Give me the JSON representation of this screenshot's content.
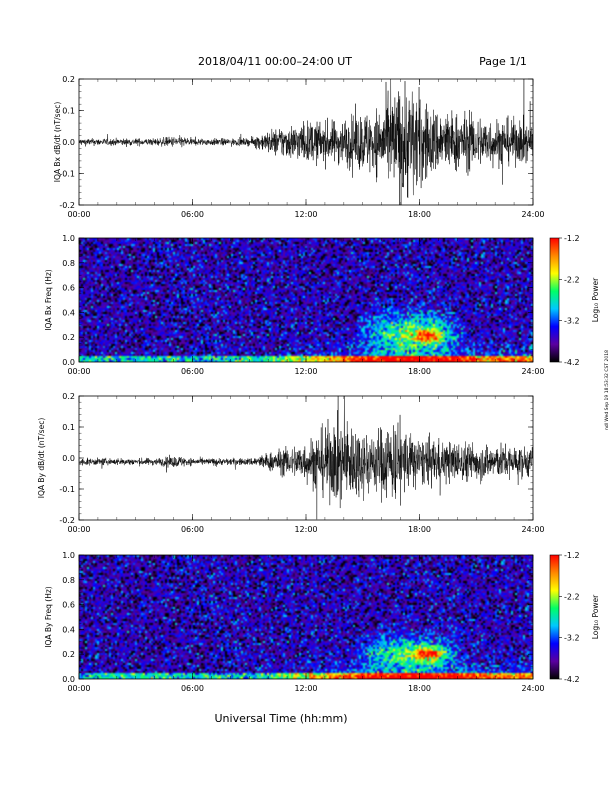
{
  "header": {
    "title": "2018/04/11   00:00–24:00 UT",
    "page": "Page 1/1"
  },
  "x_axis": {
    "label": "Universal Time (hh:mm)",
    "ticks": [
      "00:00",
      "06:00",
      "12:00",
      "18:00",
      "24:00"
    ],
    "range_hours": [
      0,
      24
    ]
  },
  "side_stamp": "ndl Wed Sep 19 18:53:32 CST 2018",
  "colorbar": {
    "label": "Log₁₀ Power",
    "ticks": [
      "-1.2",
      "-2.2",
      "-3.2",
      "-4.2"
    ],
    "range": [
      -4.2,
      -1.2
    ],
    "colors": [
      "#000000",
      "#5a00a0",
      "#0000ff",
      "#00c8ff",
      "#00ff66",
      "#ffff00",
      "#ff8800",
      "#ff0000"
    ]
  },
  "chart_data": [
    {
      "type": "line",
      "name": "bx-waveform",
      "ylabel": "IQA Bx dB/dt (nT/sec)",
      "ylim": [
        -0.2,
        0.2
      ],
      "yticks": [
        "0.2",
        "0.1",
        "0.0",
        "-0.1",
        "-0.2"
      ],
      "envelope": {
        "hours": [
          0,
          4,
          5.3,
          6,
          9,
          10.5,
          12,
          13.5,
          15,
          16,
          17,
          17.6,
          18.5,
          20,
          22,
          24
        ],
        "amplitude": [
          0.012,
          0.012,
          0.02,
          0.012,
          0.012,
          0.05,
          0.07,
          0.07,
          0.1,
          0.12,
          0.2,
          0.2,
          0.12,
          0.1,
          0.08,
          0.07
        ]
      }
    },
    {
      "type": "heatmap",
      "name": "bx-spectrogram",
      "ylabel": "IQA Bx Freq (Hz)",
      "ylim": [
        0.0,
        1.0
      ],
      "yticks": [
        "1.0",
        "0.8",
        "0.6",
        "0.4",
        "0.2",
        "0.0"
      ],
      "zlim": [
        -4.2,
        -1.2
      ],
      "features": [
        {
          "hour_range": [
            14.5,
            20.5
          ],
          "freq_range": [
            0.1,
            0.35
          ],
          "peak_hour": 18.5,
          "peak_freq": 0.2,
          "peak_power": -1.5
        }
      ]
    },
    {
      "type": "line",
      "name": "by-waveform",
      "ylabel": "IQA By dB/dt (nT/sec)",
      "ylim": [
        -0.2,
        0.2
      ],
      "yticks": [
        "0.2",
        "0.1",
        "0.0",
        "-0.1",
        "-0.2"
      ],
      "envelope": {
        "hours": [
          0,
          4,
          5.3,
          6,
          9,
          10.5,
          12,
          13,
          14,
          15.5,
          16.5,
          17,
          18,
          20,
          22,
          24
        ],
        "amplitude": [
          0.012,
          0.012,
          0.02,
          0.012,
          0.012,
          0.04,
          0.07,
          0.12,
          0.15,
          0.1,
          0.15,
          0.12,
          0.08,
          0.07,
          0.06,
          0.05
        ]
      }
    },
    {
      "type": "heatmap",
      "name": "by-spectrogram",
      "ylabel": "IQA By Freq (Hz)",
      "ylim": [
        0.0,
        1.0
      ],
      "yticks": [
        "1.0",
        "0.8",
        "0.6",
        "0.4",
        "0.2",
        "0.0"
      ],
      "zlim": [
        -4.2,
        -1.2
      ],
      "features": [
        {
          "hour_range": [
            14.5,
            20.5
          ],
          "freq_range": [
            0.1,
            0.3
          ],
          "peak_hour": 18.6,
          "peak_freq": 0.2,
          "peak_power": -1.6
        }
      ]
    }
  ]
}
